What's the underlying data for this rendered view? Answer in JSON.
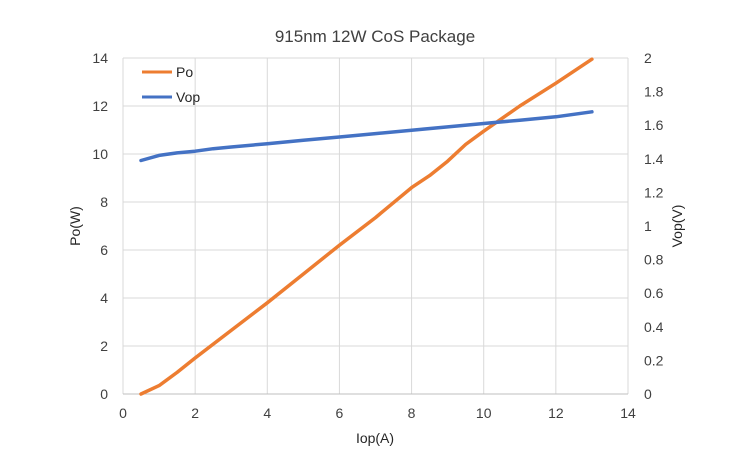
{
  "chart_data": {
    "type": "line",
    "title": "915nm 12W CoS Package",
    "xlabel": "Iop(A)",
    "ylabel": "Po(W)",
    "y2label": "Vop(V)",
    "xlim": [
      0,
      14
    ],
    "ylim": [
      0,
      14
    ],
    "y2lim": [
      0,
      2
    ],
    "xticks": [
      "0",
      "2",
      "4",
      "6",
      "8",
      "10",
      "12",
      "14"
    ],
    "yticks": [
      "0",
      "2",
      "4",
      "6",
      "8",
      "10",
      "12",
      "14"
    ],
    "y2ticks": [
      "0",
      "0.2",
      "0.4",
      "0.6",
      "0.8",
      "1",
      "1.2",
      "1.4",
      "1.6",
      "1.8",
      "2"
    ],
    "grid": true,
    "legend_position": "top-left",
    "series": [
      {
        "name": "Po",
        "axis": "left",
        "color": "#ed7d31",
        "x": [
          0.5,
          1,
          1.5,
          2,
          3,
          4,
          5,
          6,
          7,
          8,
          8.5,
          9,
          9.5,
          10,
          11,
          12,
          13
        ],
        "values": [
          0,
          0.35,
          0.9,
          1.5,
          2.65,
          3.8,
          5.0,
          6.2,
          7.35,
          8.6,
          9.1,
          9.7,
          10.4,
          10.95,
          12.0,
          12.95,
          13.95
        ]
      },
      {
        "name": "Vop",
        "axis": "right",
        "color": "#4472c4",
        "x": [
          0.5,
          1,
          1.5,
          2,
          2.5,
          3,
          4,
          5,
          6,
          7,
          8,
          9,
          10,
          11,
          12,
          13
        ],
        "values": [
          1.39,
          1.42,
          1.435,
          1.445,
          1.46,
          1.47,
          1.49,
          1.51,
          1.53,
          1.55,
          1.57,
          1.59,
          1.61,
          1.63,
          1.65,
          1.68
        ]
      }
    ]
  }
}
